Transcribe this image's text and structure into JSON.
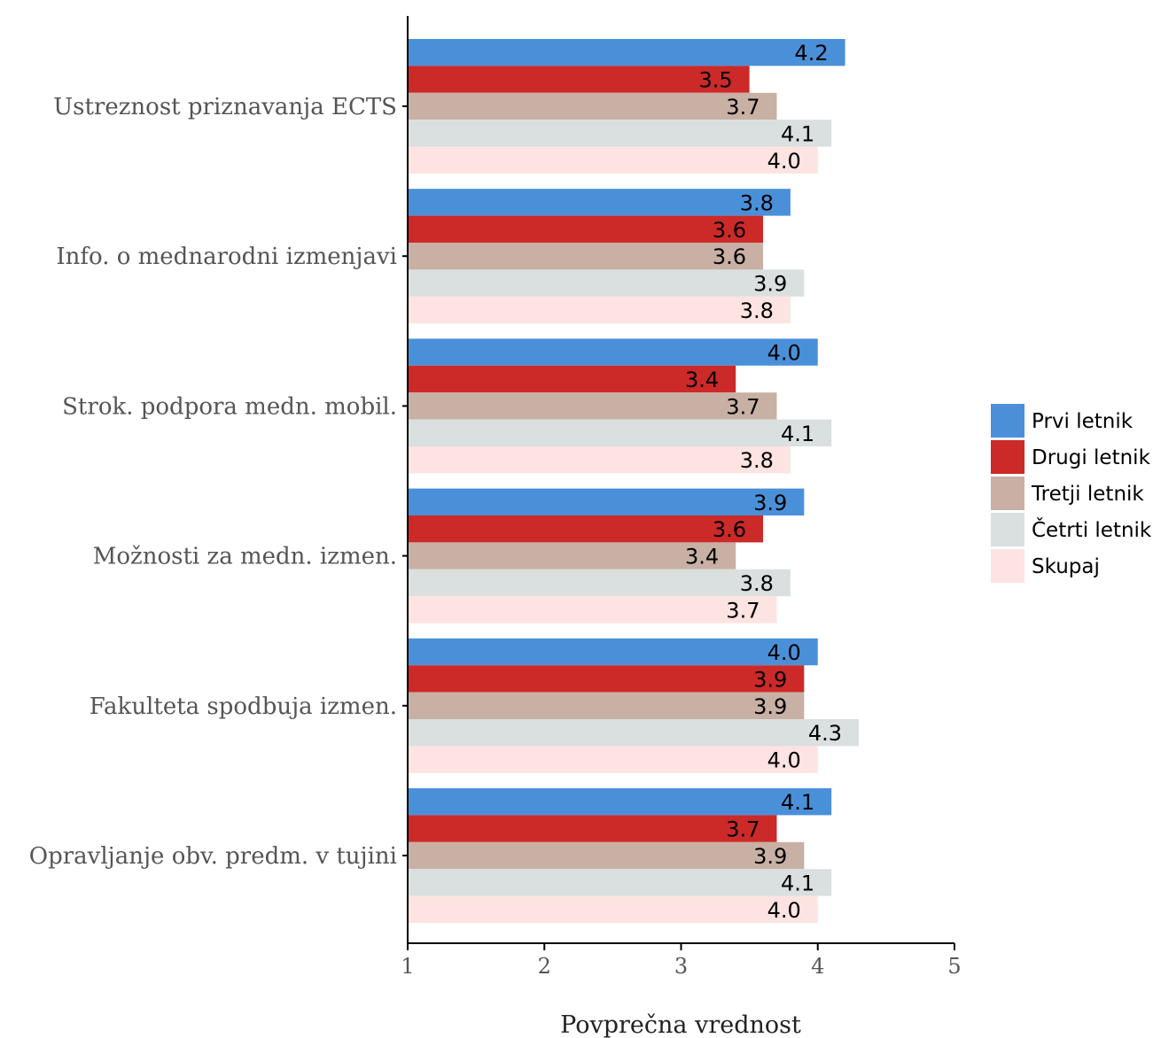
{
  "chart_data": {
    "type": "bar",
    "orientation": "horizontal",
    "categories": [
      "Ustreznost priznavanja ECTS",
      "Info. o mednarodni izmenjavi",
      "Strok. podpora medn. mobil.",
      "Možnosti za medn. izmen.",
      "Fakulteta spodbuja izmen.",
      "Opravljanje obv. predm. v tujini"
    ],
    "series": [
      {
        "name": "Prvi letnik",
        "color": "#4a90d9",
        "values": [
          4.2,
          3.8,
          4.0,
          3.9,
          4.0,
          4.1
        ],
        "labels": [
          "4.2",
          "3.8",
          "4.0",
          "3.9",
          "4.0",
          "4.1"
        ]
      },
      {
        "name": "Drugi letnik",
        "color": "#cc2929",
        "values": [
          3.5,
          3.6,
          3.4,
          3.6,
          3.9,
          3.7
        ],
        "labels": [
          "3.5",
          "3.6",
          "3.4",
          "3.6",
          "3.9",
          "3.7"
        ]
      },
      {
        "name": "Tretji letnik",
        "color": "#c8b0a4",
        "values": [
          3.7,
          3.6,
          3.7,
          3.4,
          3.9,
          3.9
        ],
        "labels": [
          "3.7",
          "3.6",
          "3.7",
          "3.4",
          "3.9",
          "3.9"
        ]
      },
      {
        "name": "Četrti letnik",
        "color": "#d9e0df",
        "values": [
          4.1,
          3.9,
          4.1,
          3.8,
          4.3,
          4.1
        ],
        "labels": [
          "4.1",
          "3.9",
          "4.1",
          "3.8",
          "4.3",
          "4.1"
        ]
      },
      {
        "name": "Skupaj",
        "color": "#fde3e1",
        "values": [
          4.0,
          3.8,
          3.8,
          3.7,
          4.0,
          4.0
        ],
        "labels": [
          "4.0",
          "3.8",
          "3.8",
          "3.7",
          "4.0",
          "4.0"
        ]
      }
    ],
    "xlabel": "Povprečna vrednost",
    "ylabel": "",
    "xlim": [
      1,
      5
    ],
    "xticks": [
      "1",
      "2",
      "3",
      "4",
      "5"
    ],
    "grid": false,
    "legend_position": "right"
  }
}
